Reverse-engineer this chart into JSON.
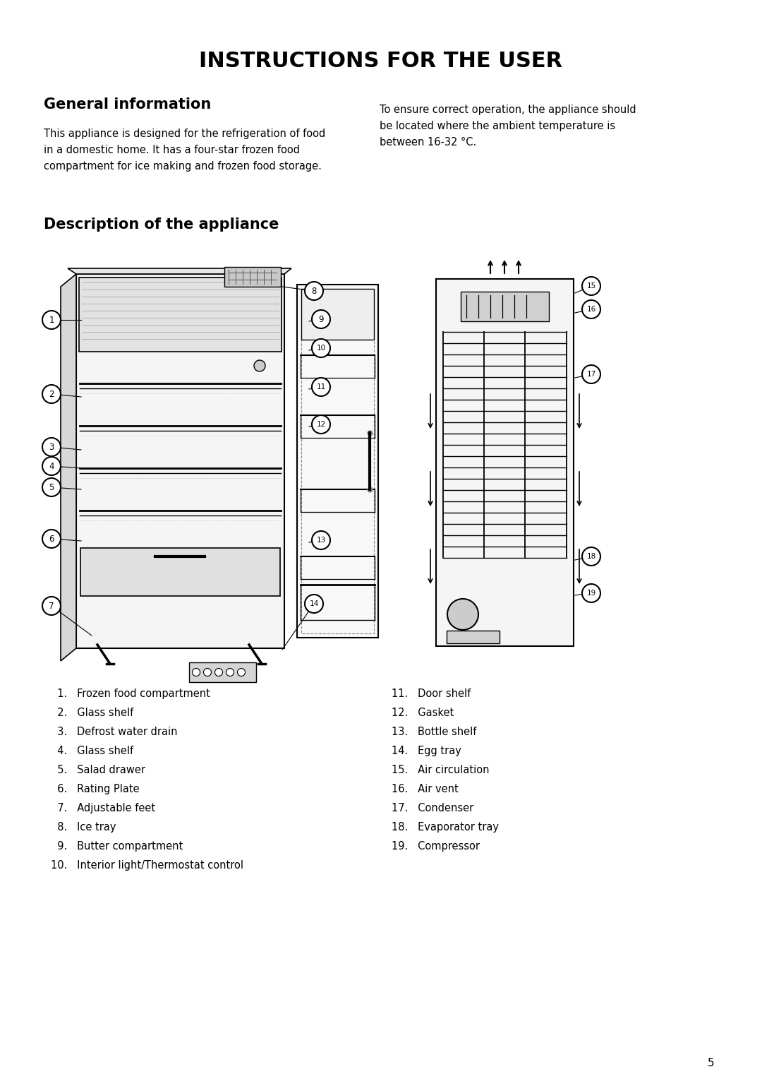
{
  "title": "INSTRUCTIONS FOR THE USER",
  "section1_title": "General information",
  "section1_left": "This appliance is designed for the refrigeration of food\nin a domestic home. It has a four-star frozen food\ncompartment for ice making and frozen food storage.",
  "section1_right": "To ensure correct operation, the appliance should\nbe located where the ambient temperature is\nbetween 16-32 °C.",
  "section2_title": "Description of the appliance",
  "items_left": [
    "  1.   Frozen food compartment",
    "  2.   Glass shelf",
    "  3.   Defrost water drain",
    "  4.   Glass shelf",
    "  5.   Salad drawer",
    "  6.   Rating Plate",
    "  7.   Adjustable feet",
    "  8.   Ice tray",
    "  9.   Butter compartment",
    "10.   Interior light/Thermostat control"
  ],
  "items_right": [
    "11.   Door shelf",
    "12.   Gasket",
    "13.   Bottle shelf",
    "14.   Egg tray",
    "15.   Air circulation",
    "16.   Air vent",
    "17.   Condenser",
    "18.   Evaporator tray",
    "19.   Compressor"
  ],
  "page_number": "5",
  "bg_color": "#ffffff",
  "text_color": "#000000",
  "title_fontsize": 22,
  "section_title_fontsize": 15,
  "body_fontsize": 10.5,
  "list_fontsize": 10.5
}
